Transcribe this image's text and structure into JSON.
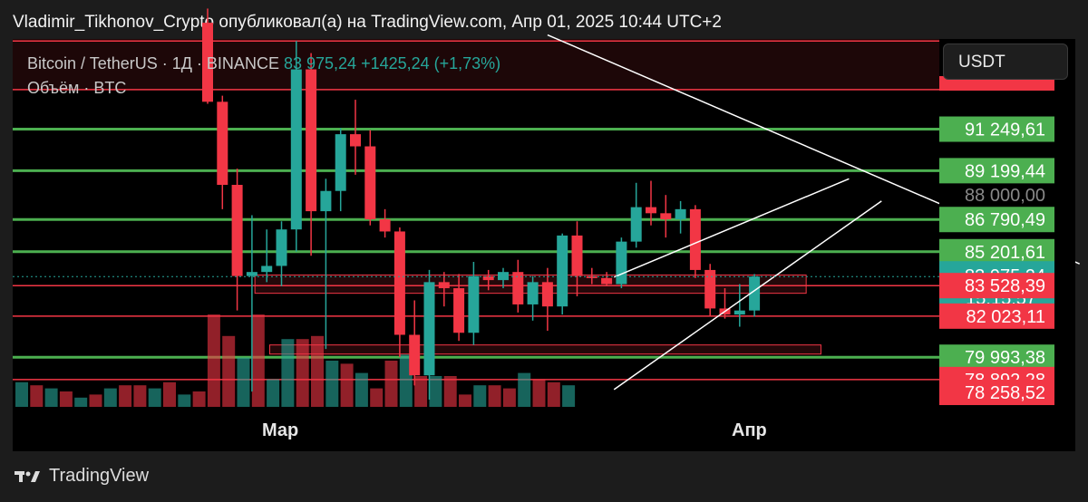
{
  "header": {
    "text": "Vladimir_Tikhonov_Crypto опубликовал(а) на TradingView.com, Апр 01, 2025 10:44 UTC+2"
  },
  "legend": {
    "symbol": "Bitcoin / TetherUS · 1Д · BINANCE",
    "price": "83 975,24",
    "change": "+1425,24 (+1,73%)",
    "volume": "Объём · BTC"
  },
  "currency": "USDT",
  "footer": {
    "brand": "TradingView"
  },
  "colors": {
    "up": "#26a69a",
    "down": "#f23645",
    "green_level": "#4caf50",
    "red_level": "#f23645",
    "background": "#000000"
  },
  "chart_data": {
    "type": "candlestick",
    "symbol": "BTC/USDT",
    "timeframe": "1D",
    "ylim": [
      77500,
      95700
    ],
    "x_ticks": [
      "Мар",
      "Апр"
    ],
    "price_labels": [
      {
        "value": 91249.61,
        "text": "91 249,61",
        "color": "#4caf50"
      },
      {
        "value": 89199.44,
        "text": "89 199,44",
        "color": "#4caf50"
      },
      {
        "value": 88000.0,
        "text": "88 000,00",
        "color": "#000000"
      },
      {
        "value": 86790.49,
        "text": "86 790,49",
        "color": "#4caf50"
      },
      {
        "value": 85201.61,
        "text": "85 201,61",
        "color": "#4caf50"
      },
      {
        "value": 83975.24,
        "text": "83 975,24",
        "color": "#26a69a"
      },
      {
        "value": 83528.39,
        "text": "83 528,39",
        "color": "#f23645"
      },
      {
        "value": 82023.11,
        "text": "82 023,11",
        "color": "#f23645"
      },
      {
        "value": 79993.38,
        "text": "79 993,38",
        "color": "#4caf50"
      },
      {
        "value": 78892.28,
        "text": "78 892,28",
        "color": "#f23645"
      },
      {
        "value": 78258.52,
        "text": "78 258,52",
        "color": "#f23645"
      }
    ],
    "countdown": "15:15:57",
    "levels": [
      {
        "price": 95600,
        "color": "#f23645"
      },
      {
        "price": 93200,
        "color": "#f23645"
      },
      {
        "price": 91249.61,
        "color": "#4caf50"
      },
      {
        "price": 89199.44,
        "color": "#4caf50"
      },
      {
        "price": 86790.49,
        "color": "#4caf50"
      },
      {
        "price": 85201.61,
        "color": "#4caf50"
      },
      {
        "price": 83528.39,
        "color": "#f23645"
      },
      {
        "price": 82023.11,
        "color": "#f23645"
      },
      {
        "price": 79993.38,
        "color": "#4caf50"
      },
      {
        "price": 78892.28,
        "color": "#f23645"
      }
    ],
    "candles": [
      {
        "o": 96500,
        "h": 97200,
        "l": 92500,
        "c": 92600
      },
      {
        "o": 92600,
        "h": 92900,
        "l": 87300,
        "c": 88500
      },
      {
        "o": 88500,
        "h": 89300,
        "l": 82300,
        "c": 84000
      },
      {
        "o": 84000,
        "h": 87000,
        "l": 78300,
        "c": 84200
      },
      {
        "o": 84200,
        "h": 86300,
        "l": 83700,
        "c": 84500
      },
      {
        "o": 84500,
        "h": 86700,
        "l": 83500,
        "c": 86300
      },
      {
        "o": 86300,
        "h": 95600,
        "l": 85200,
        "c": 94200
      },
      {
        "o": 94200,
        "h": 95000,
        "l": 85000,
        "c": 87200
      },
      {
        "o": 87200,
        "h": 88800,
        "l": 80400,
        "c": 88200
      },
      {
        "o": 88200,
        "h": 91300,
        "l": 87200,
        "c": 91000
      },
      {
        "o": 91000,
        "h": 92700,
        "l": 89000,
        "c": 90400
      },
      {
        "o": 90400,
        "h": 91200,
        "l": 86500,
        "c": 86800
      },
      {
        "o": 86800,
        "h": 87300,
        "l": 85900,
        "c": 86200
      },
      {
        "o": 86200,
        "h": 86400,
        "l": 80000,
        "c": 81100
      },
      {
        "o": 81100,
        "h": 82800,
        "l": 78600,
        "c": 79100
      },
      {
        "o": 79100,
        "h": 84300,
        "l": 77900,
        "c": 83700
      },
      {
        "o": 83700,
        "h": 84200,
        "l": 82500,
        "c": 83400
      },
      {
        "o": 83400,
        "h": 84100,
        "l": 80800,
        "c": 81200
      },
      {
        "o": 81200,
        "h": 84700,
        "l": 80600,
        "c": 84000
      },
      {
        "o": 84000,
        "h": 84300,
        "l": 83300,
        "c": 83800
      },
      {
        "o": 83800,
        "h": 84400,
        "l": 83400,
        "c": 84200
      },
      {
        "o": 84200,
        "h": 84800,
        "l": 82200,
        "c": 82600
      },
      {
        "o": 82600,
        "h": 84000,
        "l": 81800,
        "c": 83700
      },
      {
        "o": 83700,
        "h": 84400,
        "l": 81300,
        "c": 82500
      },
      {
        "o": 82500,
        "h": 86100,
        "l": 82100,
        "c": 86000
      },
      {
        "o": 86000,
        "h": 86700,
        "l": 83000,
        "c": 84000
      },
      {
        "o": 84000,
        "h": 84400,
        "l": 83600,
        "c": 83900
      },
      {
        "o": 83900,
        "h": 84200,
        "l": 83500,
        "c": 83600
      },
      {
        "o": 83600,
        "h": 85900,
        "l": 83400,
        "c": 85700
      },
      {
        "o": 85700,
        "h": 88600,
        "l": 85400,
        "c": 87400
      },
      {
        "o": 87400,
        "h": 88700,
        "l": 86500,
        "c": 87100
      },
      {
        "o": 87100,
        "h": 88000,
        "l": 85900,
        "c": 86800
      },
      {
        "o": 86800,
        "h": 87700,
        "l": 86100,
        "c": 87300
      },
      {
        "o": 87300,
        "h": 87500,
        "l": 83900,
        "c": 84300
      },
      {
        "o": 84300,
        "h": 84600,
        "l": 82000,
        "c": 82400
      },
      {
        "o": 82400,
        "h": 83400,
        "l": 81900,
        "c": 82100
      },
      {
        "o": 82100,
        "h": 83600,
        "l": 81500,
        "c": 82300
      },
      {
        "o": 82300,
        "h": 84100,
        "l": 82000,
        "c": 83975
      }
    ],
    "volume": [
      {
        "v": 8,
        "up": true
      },
      {
        "v": 7,
        "up": false
      },
      {
        "v": 6,
        "up": true
      },
      {
        "v": 5,
        "up": false
      },
      {
        "v": 3,
        "up": true
      },
      {
        "v": 4,
        "up": false
      },
      {
        "v": 6,
        "up": true
      },
      {
        "v": 7,
        "up": false
      },
      {
        "v": 7,
        "up": false
      },
      {
        "v": 6,
        "up": true
      },
      {
        "v": 8,
        "up": false
      },
      {
        "v": 4,
        "up": true
      },
      {
        "v": 5,
        "up": false
      },
      {
        "v": 30,
        "up": false
      },
      {
        "v": 23,
        "up": false
      },
      {
        "v": 16,
        "up": true
      },
      {
        "v": 30,
        "up": false
      },
      {
        "v": 9,
        "up": true
      },
      {
        "v": 22,
        "up": true
      },
      {
        "v": 22,
        "up": false
      },
      {
        "v": 23,
        "up": false
      },
      {
        "v": 15,
        "up": true
      },
      {
        "v": 14,
        "up": false
      },
      {
        "v": 11,
        "up": true
      },
      {
        "v": 6,
        "up": false
      },
      {
        "v": 15,
        "up": false
      },
      {
        "v": 17,
        "up": true
      },
      {
        "v": 10,
        "up": false
      },
      {
        "v": 10,
        "up": true
      },
      {
        "v": 10,
        "up": false
      },
      {
        "v": 4,
        "up": false
      },
      {
        "v": 7,
        "up": true
      },
      {
        "v": 7,
        "up": false
      },
      {
        "v": 6,
        "up": false
      },
      {
        "v": 11,
        "up": true
      },
      {
        "v": 9,
        "up": false
      },
      {
        "v": 8,
        "up": false
      },
      {
        "v": 7,
        "up": true
      }
    ],
    "trendlines": [
      {
        "from": [
          23,
          95900
        ],
        "to": [
          59,
          84600
        ],
        "color": "#ffffff"
      },
      {
        "from": [
          27.5,
          83950
        ],
        "to": [
          43.4,
          88800
        ],
        "color": "#ffffff"
      },
      {
        "from": [
          27.5,
          78400
        ],
        "to": [
          45.6,
          87700
        ],
        "color": "#ffffff"
      }
    ],
    "zones": [
      {
        "x1": 3.2,
        "x2": 40.5,
        "top": 84050,
        "bottom": 83150,
        "color": "#f23645"
      },
      {
        "x1": 4.2,
        "x2": 41.5,
        "top": 80600,
        "bottom": 80150,
        "color": "#f23645"
      }
    ]
  }
}
